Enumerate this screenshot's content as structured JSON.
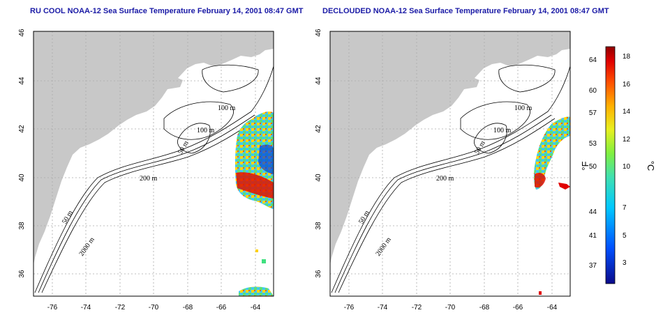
{
  "panels": [
    {
      "id": "left",
      "title": "RU COOL NOAA-12 Sea Surface Temperature February 14, 2001 08:47 GMT",
      "contour_labels": [
        "100 m",
        "100 m",
        "50 m",
        "200 m",
        "50 m",
        "2000 m"
      ]
    },
    {
      "id": "right",
      "title": "DECLOUDED NOAA-12 Sea Surface Temperature February 14, 2001 08:47 GMT",
      "contour_labels": [
        "100 m",
        "100 m",
        "50 m",
        "200 m",
        "50 m",
        "2000 m"
      ]
    }
  ],
  "axes": {
    "lon_ticks": [
      "-76",
      "-74",
      "-72",
      "-70",
      "-68",
      "-66",
      "-64"
    ],
    "lat_ticks": [
      "46",
      "44",
      "42",
      "40",
      "38",
      "36"
    ],
    "lon_range": [
      -77.3,
      -63.1
    ],
    "lat_range": [
      35.0,
      46.0
    ],
    "grid": "dotted"
  },
  "colorbar": {
    "fahrenheit_unit": "°F",
    "celsius_unit": "°C",
    "fahrenheit_ticks": [
      "64",
      "60",
      "57",
      "53",
      "50",
      "44",
      "41",
      "37"
    ],
    "celsius_ticks": [
      "18",
      "16",
      "14",
      "12",
      "10",
      "7",
      "5",
      "3"
    ],
    "celsius_range": [
      1.5,
      19.0
    ]
  },
  "colors": {
    "land": "#c8c8c8",
    "sea": "#ffffff",
    "title": "#1a1aa6",
    "contour": "#000000",
    "grid": "#aaaaaa"
  }
}
